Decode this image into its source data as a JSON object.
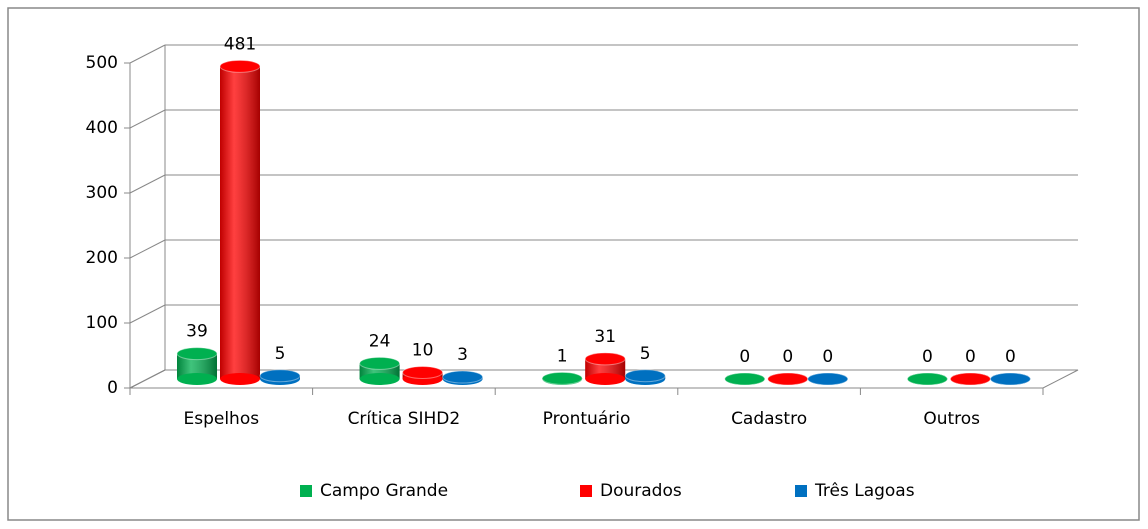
{
  "chart_data": {
    "type": "bar",
    "style": "3d-cylinder",
    "categories": [
      "Espelhos",
      "Crítica SIHD2",
      "Prontuário",
      "Cadastro",
      "Outros"
    ],
    "series": [
      {
        "name": "Campo Grande",
        "color": "#00b050",
        "values": [
          39,
          24,
          1,
          0,
          0
        ]
      },
      {
        "name": "Dourados",
        "color": "#ff0000",
        "values": [
          481,
          10,
          31,
          0,
          0
        ]
      },
      {
        "name": "Três Lagoas",
        "color": "#0070c0",
        "values": [
          5,
          3,
          5,
          0,
          0
        ]
      }
    ],
    "ylim": [
      0,
      500
    ],
    "yticks": [
      0,
      100,
      200,
      300,
      400,
      500
    ],
    "grid": true,
    "legend": "bottom"
  }
}
